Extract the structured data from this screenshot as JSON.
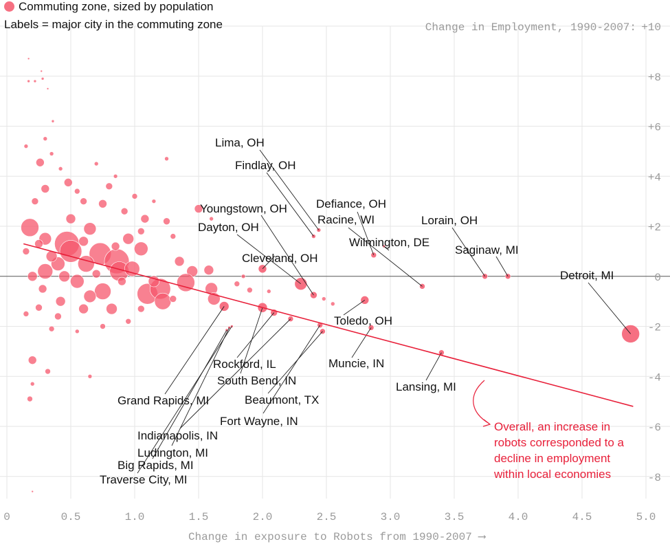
{
  "legend": {
    "bubble_label": "Commuting zone, sized by population",
    "labels_note": "Labels = major city in the commuting zone"
  },
  "colors": {
    "bubble": "#f5576c",
    "trend": "#e8203a",
    "annotation": "#e8203a",
    "grid": "#e6e6e6",
    "zero_line": "#555555",
    "axis_text": "#9a9a9a",
    "label_text": "#111111"
  },
  "chart_data": {
    "type": "scatter",
    "ylabel": "Change in Employment, 1990-2007:",
    "xlabel": "Change in exposure to Robots from 1990-2007 ⟶",
    "xlim": [
      0,
      5.0
    ],
    "ylim": [
      -8.5,
      10
    ],
    "x_ticks": [
      {
        "value": 0,
        "label": "0"
      },
      {
        "value": 0.5,
        "label": "0.5"
      },
      {
        "value": 1.0,
        "label": "1.0"
      },
      {
        "value": 1.5,
        "label": "1.5"
      },
      {
        "value": 2.0,
        "label": "2.0"
      },
      {
        "value": 2.5,
        "label": "2.5"
      },
      {
        "value": 3.0,
        "label": "3.0"
      },
      {
        "value": 3.5,
        "label": "3.5"
      },
      {
        "value": 4.0,
        "label": "4.0"
      },
      {
        "value": 4.5,
        "label": "4.5"
      },
      {
        "value": 5.0,
        "label": "5.0"
      }
    ],
    "y_ticks": [
      {
        "value": 10,
        "label": "+10"
      },
      {
        "value": 8,
        "label": "+8"
      },
      {
        "value": 6,
        "label": "+6"
      },
      {
        "value": 4,
        "label": "+4"
      },
      {
        "value": 2,
        "label": "+2"
      },
      {
        "value": 0,
        "label": "0"
      },
      {
        "value": -2,
        "label": "-2"
      },
      {
        "value": -4,
        "label": "-4"
      },
      {
        "value": -6,
        "label": "-6"
      },
      {
        "value": -8,
        "label": "-8"
      }
    ],
    "grid": true,
    "trend": {
      "x1": 0.13,
      "y1": 1.3,
      "x2": 4.9,
      "y2": -5.2
    },
    "annotation": "Overall, an increase in robots corresponded to a decline in employment within local economies",
    "labeled_points": [
      {
        "name": "Lima, OH",
        "x": 2.44,
        "y": 1.85,
        "size": 3
      },
      {
        "name": "Findlay, OH",
        "x": 2.4,
        "y": 1.6,
        "size": 3
      },
      {
        "name": "Youngstown, OH",
        "x": 2.4,
        "y": -0.75,
        "size": 5
      },
      {
        "name": "Dayton, OH",
        "x": 2.3,
        "y": -0.3,
        "size": 9
      },
      {
        "name": "Cleveland, OH",
        "x": 2.0,
        "y": 0.3,
        "size": 6
      },
      {
        "name": "Defiance, OH",
        "x": 2.87,
        "y": 0.85,
        "size": 4
      },
      {
        "name": "Racine, WI",
        "x": 3.25,
        "y": -0.4,
        "size": 4
      },
      {
        "name": "Wilmington, DE",
        "x": 2.95,
        "y": 1.2,
        "size": 2
      },
      {
        "name": "Lorain, OH",
        "x": 3.74,
        "y": 0.0,
        "size": 4
      },
      {
        "name": "Saginaw, MI",
        "x": 3.92,
        "y": 0.0,
        "size": 4
      },
      {
        "name": "Detroit, MI",
        "x": 4.88,
        "y": -2.3,
        "size": 13
      },
      {
        "name": "Toledo, OH",
        "x": 2.8,
        "y": -0.95,
        "size": 6
      },
      {
        "name": "Muncie, IN",
        "x": 2.85,
        "y": -2.05,
        "size": 4
      },
      {
        "name": "Lansing, MI",
        "x": 3.4,
        "y": -3.05,
        "size": 4
      },
      {
        "name": "Rockford, IL",
        "x": 2.09,
        "y": -1.45,
        "size": 5
      },
      {
        "name": "South Bend, IN",
        "x": 2.0,
        "y": -1.25,
        "size": 7
      },
      {
        "name": "Beaumont, TX",
        "x": 2.47,
        "y": -2.2,
        "size": 4
      },
      {
        "name": "Fort Wayne, IN",
        "x": 2.45,
        "y": -1.95,
        "size": 4
      },
      {
        "name": "Grand Rapids, MI",
        "x": 1.7,
        "y": -1.2,
        "size": 7
      },
      {
        "name": "Indianapolis, IN",
        "x": 2.22,
        "y": -1.7,
        "size": 4
      },
      {
        "name": "Ludington, MI",
        "x": 1.74,
        "y": -2.05,
        "size": 2
      },
      {
        "name": "Big Rapids, MI",
        "x": 1.72,
        "y": -2.15,
        "size": 2
      },
      {
        "name": "Traverse City, MI",
        "x": 1.76,
        "y": -2.0,
        "size": 2
      }
    ],
    "points": [
      {
        "x": 0.18,
        "y": 1.95,
        "size": 13
      },
      {
        "x": 0.47,
        "y": 1.3,
        "size": 18
      },
      {
        "x": 0.5,
        "y": 1.0,
        "size": 16
      },
      {
        "x": 0.73,
        "y": 0.9,
        "size": 16
      },
      {
        "x": 0.86,
        "y": 0.6,
        "size": 18
      },
      {
        "x": 0.88,
        "y": 0.2,
        "size": 14
      },
      {
        "x": 0.62,
        "y": 0.5,
        "size": 12
      },
      {
        "x": 0.4,
        "y": 0.5,
        "size": 10
      },
      {
        "x": 0.3,
        "y": 0.2,
        "size": 11
      },
      {
        "x": 0.55,
        "y": -0.2,
        "size": 10
      },
      {
        "x": 0.75,
        "y": -0.6,
        "size": 12
      },
      {
        "x": 1.1,
        "y": -0.7,
        "size": 15
      },
      {
        "x": 1.2,
        "y": -0.5,
        "size": 15
      },
      {
        "x": 1.22,
        "y": -1.0,
        "size": 12
      },
      {
        "x": 0.98,
        "y": 0.3,
        "size": 11
      },
      {
        "x": 1.05,
        "y": 1.1,
        "size": 10
      },
      {
        "x": 0.95,
        "y": 1.5,
        "size": 8
      },
      {
        "x": 0.65,
        "y": 1.9,
        "size": 9
      },
      {
        "x": 0.3,
        "y": 1.5,
        "size": 9
      },
      {
        "x": 0.5,
        "y": 2.3,
        "size": 7
      },
      {
        "x": 0.48,
        "y": 3.75,
        "size": 6
      },
      {
        "x": 0.3,
        "y": 3.5,
        "size": 6
      },
      {
        "x": 0.26,
        "y": 4.55,
        "size": 6
      },
      {
        "x": 0.6,
        "y": 3.0,
        "size": 5
      },
      {
        "x": 0.75,
        "y": 2.9,
        "size": 6
      },
      {
        "x": 0.8,
        "y": 3.6,
        "size": 5
      },
      {
        "x": 0.92,
        "y": 2.6,
        "size": 5
      },
      {
        "x": 1.08,
        "y": 2.3,
        "size": 6
      },
      {
        "x": 1.25,
        "y": 2.2,
        "size": 5
      },
      {
        "x": 0.22,
        "y": 3.0,
        "size": 5
      },
      {
        "x": 0.35,
        "y": 0.8,
        "size": 8
      },
      {
        "x": 0.2,
        "y": 0.0,
        "size": 7
      },
      {
        "x": 0.28,
        "y": -0.5,
        "size": 6
      },
      {
        "x": 0.42,
        "y": -1.0,
        "size": 7
      },
      {
        "x": 0.6,
        "y": -1.3,
        "size": 7
      },
      {
        "x": 0.82,
        "y": -1.3,
        "size": 8
      },
      {
        "x": 0.4,
        "y": -1.6,
        "size": 5
      },
      {
        "x": 0.25,
        "y": -1.25,
        "size": 5
      },
      {
        "x": 0.65,
        "y": -0.8,
        "size": 9
      },
      {
        "x": 0.45,
        "y": 0.0,
        "size": 8
      },
      {
        "x": 1.35,
        "y": 0.6,
        "size": 7
      },
      {
        "x": 1.45,
        "y": 0.2,
        "size": 8
      },
      {
        "x": 1.4,
        "y": -0.25,
        "size": 13
      },
      {
        "x": 1.6,
        "y": -0.5,
        "size": 9
      },
      {
        "x": 1.62,
        "y": -0.9,
        "size": 9
      },
      {
        "x": 1.58,
        "y": 0.25,
        "size": 7
      },
      {
        "x": 1.15,
        "y": -0.2,
        "size": 8
      },
      {
        "x": 1.5,
        "y": 2.7,
        "size": 6
      },
      {
        "x": 1.25,
        "y": 4.7,
        "size": 3
      },
      {
        "x": 1.6,
        "y": 2.3,
        "size": 3
      },
      {
        "x": 1.8,
        "y": -0.3,
        "size": 4
      },
      {
        "x": 1.9,
        "y": -0.55,
        "size": 4
      },
      {
        "x": 1.85,
        "y": 0.0,
        "size": 3
      },
      {
        "x": 2.05,
        "y": -0.6,
        "size": 3
      },
      {
        "x": 2.48,
        "y": -0.9,
        "size": 3
      },
      {
        "x": 2.55,
        "y": -1.1,
        "size": 3
      },
      {
        "x": 0.2,
        "y": -3.35,
        "size": 6
      },
      {
        "x": 0.18,
        "y": -4.9,
        "size": 4
      },
      {
        "x": 0.32,
        "y": -3.8,
        "size": 4
      },
      {
        "x": 0.65,
        "y": -4.0,
        "size": 3
      },
      {
        "x": 0.2,
        "y": -4.3,
        "size": 3
      },
      {
        "x": 0.15,
        "y": 5.2,
        "size": 3
      },
      {
        "x": 0.17,
        "y": 7.8,
        "size": 2
      },
      {
        "x": 0.22,
        "y": 7.8,
        "size": 2
      },
      {
        "x": 0.28,
        "y": 7.9,
        "size": 2
      },
      {
        "x": 0.17,
        "y": 8.7,
        "size": 1.5
      },
      {
        "x": 0.27,
        "y": 8.2,
        "size": 1.5
      },
      {
        "x": 0.32,
        "y": 7.5,
        "size": 1.5
      },
      {
        "x": 0.36,
        "y": 6.2,
        "size": 2
      },
      {
        "x": 0.3,
        "y": 5.5,
        "size": 3
      },
      {
        "x": 0.35,
        "y": 4.9,
        "size": 3
      },
      {
        "x": 0.42,
        "y": 4.3,
        "size": 3
      },
      {
        "x": 0.55,
        "y": 3.4,
        "size": 4
      },
      {
        "x": 0.7,
        "y": 4.5,
        "size": 3
      },
      {
        "x": 0.85,
        "y": 4.0,
        "size": 3
      },
      {
        "x": 1.0,
        "y": 3.2,
        "size": 4
      },
      {
        "x": 1.15,
        "y": 3.0,
        "size": 3
      },
      {
        "x": 1.3,
        "y": 1.6,
        "size": 4
      },
      {
        "x": 1.05,
        "y": 1.8,
        "size": 5
      },
      {
        "x": 0.85,
        "y": 1.2,
        "size": 6
      },
      {
        "x": 0.6,
        "y": 1.4,
        "size": 7
      },
      {
        "x": 0.25,
        "y": 1.3,
        "size": 6
      },
      {
        "x": 0.15,
        "y": 1.0,
        "size": 5
      },
      {
        "x": 0.15,
        "y": -1.5,
        "size": 4
      },
      {
        "x": 0.35,
        "y": -2.1,
        "size": 4
      },
      {
        "x": 0.55,
        "y": -2.2,
        "size": 3
      },
      {
        "x": 0.75,
        "y": -2.0,
        "size": 4
      },
      {
        "x": 0.95,
        "y": -1.8,
        "size": 4
      },
      {
        "x": 1.05,
        "y": -1.3,
        "size": 5
      },
      {
        "x": 0.2,
        "y": -8.6,
        "size": 1.5
      },
      {
        "x": 0.9,
        "y": -0.2,
        "size": 6
      },
      {
        "x": 0.7,
        "y": 0.1,
        "size": 6
      },
      {
        "x": 1.3,
        "y": -0.9,
        "size": 5
      }
    ]
  }
}
